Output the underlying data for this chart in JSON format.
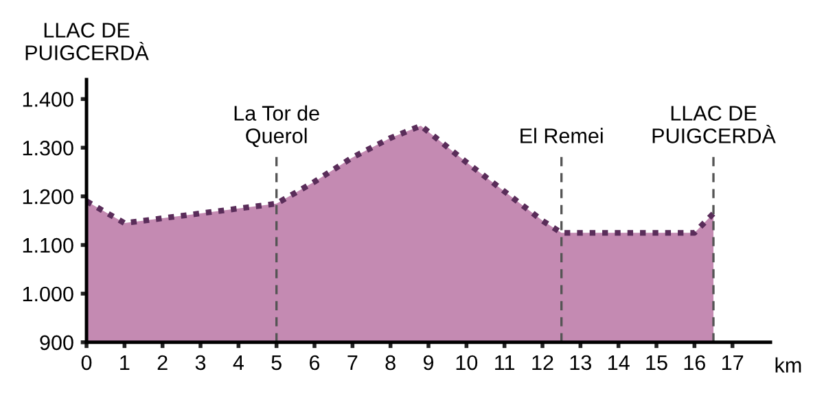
{
  "chart_data": {
    "type": "area",
    "x": [
      0,
      1,
      2,
      3,
      4,
      5,
      6,
      7,
      8,
      8.8,
      10,
      11,
      12,
      12.5,
      14,
      16,
      16.5
    ],
    "series": [
      {
        "color": "#c48ab2",
        "line_style": "dotted",
        "values": [
          1190,
          1145,
          1155,
          1165,
          1175,
          1185,
          1230,
          1280,
          1320,
          1345,
          1270,
          1210,
          1150,
          1125,
          1125,
          1125,
          1165
        ]
      }
    ],
    "xlabel": "km",
    "xlim": [
      0,
      18
    ],
    "xticks": [
      0,
      1,
      2,
      3,
      4,
      5,
      6,
      7,
      8,
      9,
      10,
      11,
      12,
      13,
      14,
      15,
      16,
      17
    ],
    "ylim": [
      900,
      1440
    ],
    "yticks": [
      {
        "value": 900,
        "label": "900"
      },
      {
        "value": 1000,
        "label": "1.000"
      },
      {
        "value": 1100,
        "label": "1.100"
      },
      {
        "value": 1200,
        "label": "1.200"
      },
      {
        "value": 1300,
        "label": "1.300"
      },
      {
        "value": 1400,
        "label": "1.400"
      }
    ],
    "ref_lines": [
      {
        "axis": "x",
        "value": 5,
        "label": "La Tor de\nQuerol",
        "color": "#555555",
        "line_style": "dashed"
      },
      {
        "axis": "x",
        "value": 12.5,
        "label": "El Remei",
        "color": "#555555",
        "line_style": "dashed"
      },
      {
        "axis": "x",
        "value": 16.5,
        "label": "LLAC DE\nPUIGCERDÀ",
        "color": "#555555",
        "line_style": "dashed"
      }
    ],
    "annotations": [
      "LLAC DE\nPUIGCERDÀ"
    ],
    "grid": false,
    "legend": false
  }
}
